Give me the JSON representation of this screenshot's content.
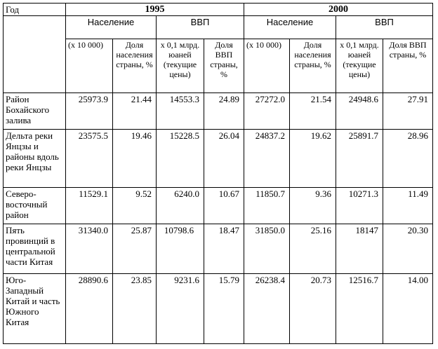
{
  "table": {
    "corner": "Год",
    "years": [
      "1995",
      "2000"
    ],
    "groups": [
      "Население",
      "ВВП",
      "Население",
      "ВВП"
    ],
    "subheaders": [
      "(x 10 000)",
      "Доля населения страны, %",
      "x 0,1 млрд. юаней (текущие цены)",
      "Доля ВВП страны, %",
      "(x 10 000)",
      "Доля населения страны, %",
      "x 0,1 млрд. юаней (текущие цены)",
      "Доля ВВП страны, %"
    ],
    "rows": [
      [
        "Район Бохайского залива",
        "25973.9",
        "21.44",
        "14553.3",
        "24.89",
        "27272.0",
        "21.54",
        "24948.6",
        "27.91"
      ],
      [
        "Дельта реки Янцзы и районы вдоль реки Янцзы",
        "23575.5",
        "19.46",
        "15228.5",
        "26.04",
        "24837.2",
        "19.62",
        "25891.7",
        "28.96"
      ],
      [
        "Северо-восточный район",
        "11529.1",
        "9.52",
        "6240.0",
        "10.67",
        "11850.7",
        "9.36",
        "10271.3",
        "11.49"
      ],
      [
        "Пять провинций в центральной части Китая",
        "31340.0",
        "25.87",
        "10798.6",
        "18.47",
        "31850.0",
        "25.16",
        "18147",
        "20.30"
      ],
      [
        "Юго-Западный Китай и часть Южного Китая",
        "28890.6",
        "23.85",
        "9231.6",
        "15.79",
        "26238.4",
        "20.73",
        "12516.7",
        "14.00"
      ]
    ]
  }
}
